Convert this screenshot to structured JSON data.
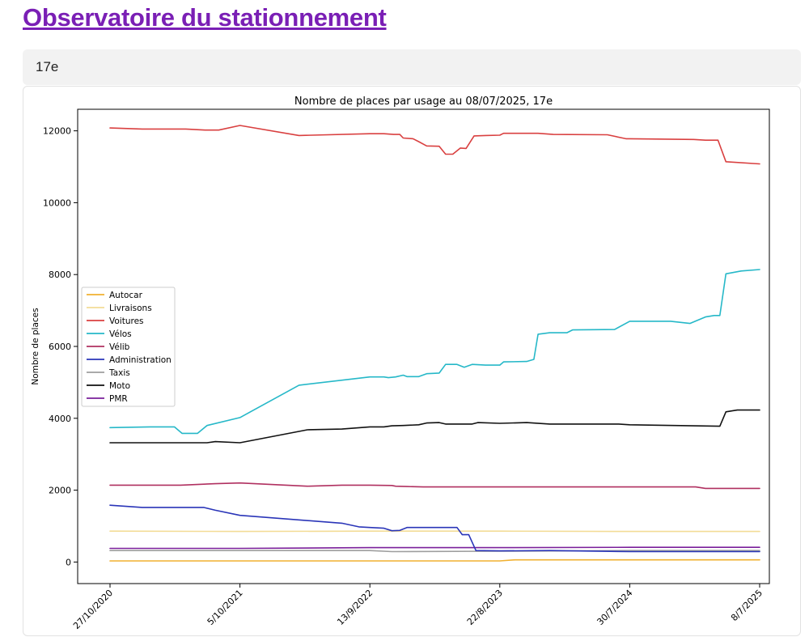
{
  "page": {
    "title": "Observatoire du stationnement",
    "selector_value": "17e"
  },
  "chart_data": {
    "type": "line",
    "title": "Nombre de places par usage au 08/07/2025, 17e",
    "xlabel": "",
    "ylabel": "Nombre de places",
    "x_tick_labels": [
      "27/10/2020",
      "5/10/2021",
      "13/9/2022",
      "22/8/2023",
      "30/7/2024",
      "8/7/2025"
    ],
    "x_range": [
      "2020-10-27",
      "2025-07-08"
    ],
    "ylim": [
      -600,
      12600
    ],
    "y_ticks": [
      0,
      2000,
      4000,
      6000,
      8000,
      10000,
      12000
    ],
    "grid": false,
    "legend_position": "center-left",
    "series": [
      {
        "name": "Autocar",
        "color": "#f0b030",
        "points": [
          [
            "2020-10-27",
            30
          ],
          [
            "2023-08-22",
            30
          ],
          [
            "2023-10-01",
            60
          ],
          [
            "2025-07-08",
            60
          ]
        ]
      },
      {
        "name": "Livraisons",
        "color": "#f3dc96",
        "points": [
          [
            "2020-10-27",
            860
          ],
          [
            "2021-10-05",
            850
          ],
          [
            "2022-09-13",
            860
          ],
          [
            "2023-08-22",
            860
          ],
          [
            "2024-07-30",
            850
          ],
          [
            "2025-07-08",
            850
          ]
        ]
      },
      {
        "name": "Voitures",
        "color": "#d94040",
        "points": [
          [
            "2020-10-27",
            12080
          ],
          [
            "2021-01-20",
            12050
          ],
          [
            "2021-05-15",
            12050
          ],
          [
            "2021-07-05",
            12020
          ],
          [
            "2021-08-10",
            12020
          ],
          [
            "2021-10-05",
            12150
          ],
          [
            "2022-03-10",
            11870
          ],
          [
            "2022-09-13",
            11920
          ],
          [
            "2022-10-20",
            11920
          ],
          [
            "2022-11-15",
            11900
          ],
          [
            "2022-12-01",
            11900
          ],
          [
            "2022-12-10",
            11800
          ],
          [
            "2023-01-05",
            11780
          ],
          [
            "2023-01-20",
            11700
          ],
          [
            "2023-02-10",
            11580
          ],
          [
            "2023-03-15",
            11570
          ],
          [
            "2023-04-01",
            11350
          ],
          [
            "2023-04-20",
            11350
          ],
          [
            "2023-05-10",
            11520
          ],
          [
            "2023-05-25",
            11510
          ],
          [
            "2023-06-15",
            11860
          ],
          [
            "2023-07-15",
            11870
          ],
          [
            "2023-08-22",
            11880
          ],
          [
            "2023-09-01",
            11930
          ],
          [
            "2023-12-01",
            11930
          ],
          [
            "2024-01-10",
            11900
          ],
          [
            "2024-06-01",
            11890
          ],
          [
            "2024-07-20",
            11780
          ],
          [
            "2024-07-30",
            11780
          ],
          [
            "2025-01-15",
            11760
          ],
          [
            "2025-02-15",
            11740
          ],
          [
            "2025-03-20",
            11740
          ],
          [
            "2025-04-10",
            11140
          ],
          [
            "2025-07-08",
            11080
          ]
        ]
      },
      {
        "name": "Vélos",
        "color": "#26b8c8",
        "points": [
          [
            "2020-10-27",
            3740
          ],
          [
            "2021-02-10",
            3760
          ],
          [
            "2021-04-15",
            3760
          ],
          [
            "2021-05-05",
            3580
          ],
          [
            "2021-06-15",
            3580
          ],
          [
            "2021-07-10",
            3800
          ],
          [
            "2021-10-05",
            4020
          ],
          [
            "2022-03-10",
            4920
          ],
          [
            "2022-09-13",
            5150
          ],
          [
            "2022-10-20",
            5150
          ],
          [
            "2022-11-01",
            5130
          ],
          [
            "2022-11-20",
            5150
          ],
          [
            "2022-12-10",
            5200
          ],
          [
            "2022-12-20",
            5160
          ],
          [
            "2023-01-20",
            5160
          ],
          [
            "2023-02-10",
            5240
          ],
          [
            "2023-03-15",
            5260
          ],
          [
            "2023-04-01",
            5500
          ],
          [
            "2023-05-01",
            5500
          ],
          [
            "2023-05-20",
            5420
          ],
          [
            "2023-06-10",
            5500
          ],
          [
            "2023-07-15",
            5480
          ],
          [
            "2023-08-22",
            5480
          ],
          [
            "2023-09-01",
            5570
          ],
          [
            "2023-11-01",
            5580
          ],
          [
            "2023-11-20",
            5640
          ],
          [
            "2023-12-01",
            6340
          ],
          [
            "2024-01-01",
            6380
          ],
          [
            "2024-02-15",
            6380
          ],
          [
            "2024-03-01",
            6460
          ],
          [
            "2024-06-20",
            6470
          ],
          [
            "2024-07-30",
            6700
          ],
          [
            "2024-11-15",
            6700
          ],
          [
            "2025-01-05",
            6640
          ],
          [
            "2025-02-15",
            6820
          ],
          [
            "2025-03-10",
            6860
          ],
          [
            "2025-03-25",
            6860
          ],
          [
            "2025-04-10",
            8020
          ],
          [
            "2025-05-20",
            8100
          ],
          [
            "2025-07-08",
            8140
          ]
        ]
      },
      {
        "name": "Vélib",
        "color": "#b03060",
        "points": [
          [
            "2020-10-27",
            2140
          ],
          [
            "2021-05-01",
            2140
          ],
          [
            "2021-08-01",
            2180
          ],
          [
            "2021-10-05",
            2200
          ],
          [
            "2022-04-01",
            2110
          ],
          [
            "2022-07-01",
            2140
          ],
          [
            "2022-09-13",
            2140
          ],
          [
            "2022-11-10",
            2130
          ],
          [
            "2022-11-20",
            2110
          ],
          [
            "2022-12-20",
            2100
          ],
          [
            "2023-02-01",
            2090
          ],
          [
            "2023-08-22",
            2090
          ],
          [
            "2024-07-30",
            2090
          ],
          [
            "2025-01-20",
            2090
          ],
          [
            "2025-02-15",
            2050
          ],
          [
            "2025-07-08",
            2050
          ]
        ]
      },
      {
        "name": "Administration",
        "color": "#2a35b8",
        "points": [
          [
            "2020-10-27",
            1580
          ],
          [
            "2021-01-20",
            1520
          ],
          [
            "2021-07-01",
            1520
          ],
          [
            "2021-08-01",
            1440
          ],
          [
            "2021-10-05",
            1300
          ],
          [
            "2022-07-01",
            1080
          ],
          [
            "2022-08-15",
            980
          ],
          [
            "2022-09-13",
            960
          ],
          [
            "2022-10-20",
            940
          ],
          [
            "2022-11-10",
            870
          ],
          [
            "2022-12-01",
            880
          ],
          [
            "2022-12-20",
            960
          ],
          [
            "2023-02-01",
            960
          ],
          [
            "2023-05-01",
            960
          ],
          [
            "2023-05-15",
            760
          ],
          [
            "2023-06-01",
            760
          ],
          [
            "2023-06-20",
            320
          ],
          [
            "2023-08-22",
            310
          ],
          [
            "2024-01-01",
            320
          ],
          [
            "2024-07-30",
            290
          ],
          [
            "2025-07-08",
            290
          ]
        ]
      },
      {
        "name": "Taxis",
        "color": "#9e9e9e",
        "points": [
          [
            "2020-10-27",
            320
          ],
          [
            "2022-09-13",
            320
          ],
          [
            "2022-11-10",
            290
          ],
          [
            "2023-08-22",
            300
          ],
          [
            "2024-07-30",
            320
          ],
          [
            "2025-07-08",
            320
          ]
        ]
      },
      {
        "name": "Moto",
        "color": "#111111",
        "points": [
          [
            "2020-10-27",
            3320
          ],
          [
            "2021-07-10",
            3320
          ],
          [
            "2021-08-01",
            3350
          ],
          [
            "2021-10-05",
            3320
          ],
          [
            "2022-04-01",
            3680
          ],
          [
            "2022-07-01",
            3700
          ],
          [
            "2022-09-13",
            3760
          ],
          [
            "2022-10-20",
            3760
          ],
          [
            "2022-11-10",
            3790
          ],
          [
            "2022-12-10",
            3800
          ],
          [
            "2023-01-20",
            3820
          ],
          [
            "2023-02-10",
            3870
          ],
          [
            "2023-03-15",
            3880
          ],
          [
            "2023-04-01",
            3840
          ],
          [
            "2023-06-10",
            3840
          ],
          [
            "2023-06-25",
            3880
          ],
          [
            "2023-08-22",
            3860
          ],
          [
            "2023-11-01",
            3880
          ],
          [
            "2024-01-01",
            3840
          ],
          [
            "2024-07-01",
            3840
          ],
          [
            "2024-07-30",
            3820
          ],
          [
            "2025-01-15",
            3790
          ],
          [
            "2025-03-25",
            3780
          ],
          [
            "2025-04-10",
            4180
          ],
          [
            "2025-05-10",
            4230
          ],
          [
            "2025-07-08",
            4230
          ]
        ]
      },
      {
        "name": "PMR",
        "color": "#7a1f9a",
        "points": [
          [
            "2020-10-27",
            380
          ],
          [
            "2021-10-05",
            380
          ],
          [
            "2022-09-13",
            400
          ],
          [
            "2023-08-22",
            400
          ],
          [
            "2024-07-30",
            410
          ],
          [
            "2025-07-08",
            410
          ]
        ]
      }
    ]
  }
}
